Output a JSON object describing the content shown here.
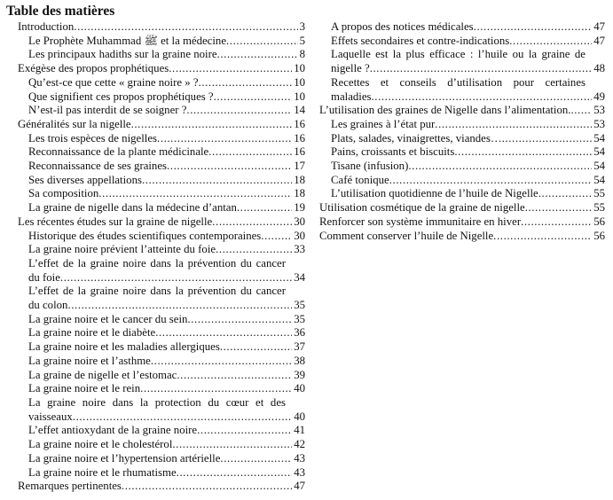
{
  "title": "Table des matières",
  "left": [
    {
      "level": 1,
      "text": "Introduction",
      "page": "3"
    },
    {
      "level": 2,
      "text": "Le Prophète Muhammad ﷺ et la médecine",
      "page": "5"
    },
    {
      "level": 2,
      "text": "Les principaux hadiths sur la graine noire",
      "page": "8"
    },
    {
      "level": 1,
      "text": "Exégèse des propos prophétiques",
      "page": "10"
    },
    {
      "level": 2,
      "text": "Qu’est-ce que cette « graine noire » ?",
      "page": "10"
    },
    {
      "level": 2,
      "text": "Que signifient ces propos prophétiques ?",
      "page": "10"
    },
    {
      "level": 2,
      "text": "N’est-il pas interdit de se soigner ?",
      "page": "14"
    },
    {
      "level": 1,
      "text": "Généralités sur la nigelle",
      "page": "16"
    },
    {
      "level": 2,
      "text": "Les trois espèces de nigelles",
      "page": "16"
    },
    {
      "level": 2,
      "text": "Reconnaissance de la plante médicinale",
      "page": "16"
    },
    {
      "level": 2,
      "text": "Reconnaissance de ses graines",
      "page": "17"
    },
    {
      "level": 2,
      "text": "Ses diverses appellations",
      "page": "18"
    },
    {
      "level": 2,
      "text": "Sa composition",
      "page": "18"
    },
    {
      "level": 2,
      "text": "La graine de nigelle dans la médecine d’antan",
      "page": "19"
    },
    {
      "level": 1,
      "text": "Les récentes études sur la graine de nigelle",
      "page": "30"
    },
    {
      "level": 2,
      "text": "Historique des études scientifiques contemporaines",
      "page": "30"
    },
    {
      "level": 2,
      "text": "La graine noire prévient l’atteinte du foie",
      "page": "33"
    },
    {
      "level": 2,
      "text": "L’effet de la graine noire dans la prévention du cancer du foie",
      "page": "34"
    },
    {
      "level": 2,
      "text": "L’effet de la graine noire dans la prévention du cancer du colon",
      "page": "35"
    },
    {
      "level": 2,
      "text": "La graine noire et le cancer du sein",
      "page": "35"
    },
    {
      "level": 2,
      "text": "La graine noire et le diabète",
      "page": "36"
    },
    {
      "level": 2,
      "text": "La graine noire et les maladies allergiques",
      "page": "37"
    },
    {
      "level": 2,
      "text": "La graine noire et l’asthme",
      "page": "38"
    },
    {
      "level": 2,
      "text": "La graine de nigelle et l’estomac",
      "page": "39"
    },
    {
      "level": 2,
      "text": "La graine noire et le rein",
      "page": "40"
    },
    {
      "level": 2,
      "text": "La graine noire dans la protection du cœur et des vaisseaux",
      "page": "40"
    },
    {
      "level": 2,
      "text": "L’effet antioxydant de la graine noire",
      "page": "41"
    },
    {
      "level": 2,
      "text": "La graine noire et le cholestérol",
      "page": "42"
    },
    {
      "level": 2,
      "text": "La graine noire et l’hypertension artérielle",
      "page": "43"
    },
    {
      "level": 2,
      "text": "La graine noire et le rhumatisme",
      "page": "43"
    },
    {
      "level": 1,
      "text": "Remarques pertinentes",
      "page": "47"
    }
  ],
  "right": [
    {
      "level": 2,
      "text": "A propos des notices médicales",
      "page": "47"
    },
    {
      "level": 2,
      "text": "Effets secondaires et contre-indications",
      "page": "47"
    },
    {
      "level": 2,
      "text": "Laquelle est la plus efficace : l’huile ou la graine de nigelle ?",
      "page": "48"
    },
    {
      "level": 2,
      "text": "Recettes et conseils d’utilisation pour certaines maladies",
      "page": "49"
    },
    {
      "level": 1,
      "text": "L’utilisation des graines de Nigelle dans l’alimentation.",
      "page": "53"
    },
    {
      "level": 2,
      "text": "Les graines à l’état pur",
      "page": "53"
    },
    {
      "level": 2,
      "text": "Plats, salades, vinaigrettes, viandes…",
      "page": "54"
    },
    {
      "level": 2,
      "text": "Pains, croissants et biscuits",
      "page": "54"
    },
    {
      "level": 2,
      "text": "Tisane (infusion)",
      "page": "54"
    },
    {
      "level": 2,
      "text": "Café tonique",
      "page": "54"
    },
    {
      "level": 2,
      "text": "L’utilisation quotidienne de l’huile de Nigelle",
      "page": "55"
    },
    {
      "level": 1,
      "text": "Utilisation cosmétique de la graine de nigelle",
      "page": "55"
    },
    {
      "level": 1,
      "text": "Renforcer son système immunitaire en hiver",
      "page": "56"
    },
    {
      "level": 1,
      "text": "Comment conserver l’huile de Nigelle",
      "page": "56"
    }
  ]
}
